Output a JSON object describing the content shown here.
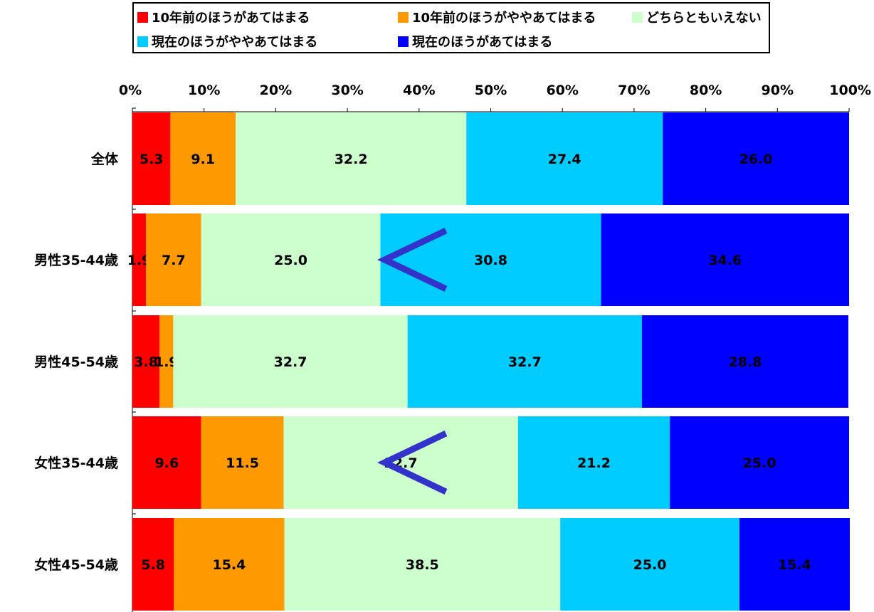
{
  "chart_data": {
    "type": "bar",
    "orientation": "horizontal",
    "stacked": true,
    "percent_stacked": true,
    "xlim": [
      0,
      100
    ],
    "x_ticks": [
      "0%",
      "10%",
      "20%",
      "30%",
      "40%",
      "50%",
      "60%",
      "70%",
      "80%",
      "90%",
      "100%"
    ],
    "categories": [
      "全体",
      "男性35-44歳",
      "男性45-54歳",
      "女性35-44歳",
      "女性45-54歳"
    ],
    "series": [
      {
        "name": "10年前のほうがあてはまる",
        "color": "#ff0000",
        "values": [
          5.3,
          1.9,
          3.8,
          9.6,
          5.8
        ],
        "labels": [
          "5.3",
          "1.9",
          "3.8",
          "9.6",
          "5.8"
        ]
      },
      {
        "name": "10年前のほうがややあてはまる",
        "color": "#ff9900",
        "values": [
          9.1,
          7.7,
          1.9,
          11.5,
          15.4
        ],
        "labels": [
          "9.1",
          "7.7",
          "1.9",
          "11.5",
          "15.4"
        ]
      },
      {
        "name": "どちらともいえない",
        "color": "#ccffcc",
        "values": [
          32.2,
          25.0,
          32.7,
          32.7,
          38.5
        ],
        "labels": [
          "32.2",
          "25.0",
          "32.7",
          "32.7",
          "38.5"
        ]
      },
      {
        "name": "現在のほうがややあてはまる",
        "color": "#00ccff",
        "values": [
          27.4,
          30.8,
          32.7,
          21.2,
          25.0
        ],
        "labels": [
          "27.4",
          "30.8",
          "32.7",
          "21.2",
          "25.0"
        ]
      },
      {
        "name": "現在のほうがあてはまる",
        "color": "#0000ff",
        "values": [
          26.0,
          34.6,
          28.8,
          25.0,
          15.4
        ],
        "labels": [
          "26.0",
          "34.6",
          "28.8",
          "25.0",
          "15.4"
        ]
      }
    ],
    "legend_position": "top",
    "grid": false,
    "annotations": [
      {
        "type": "less-than-marker",
        "category": "男性35-44歳",
        "x": 36,
        "color": "#3333cc"
      },
      {
        "type": "less-than-marker",
        "category": "女性35-44歳",
        "x": 36,
        "color": "#3333cc"
      }
    ]
  }
}
